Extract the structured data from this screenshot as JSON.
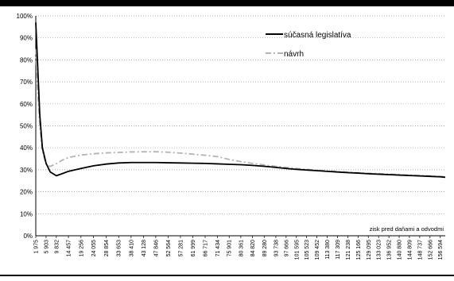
{
  "chart_data": {
    "type": "line",
    "xlabel": "zisk pred daňami a odvodmi",
    "ylabel": "",
    "ylim": [
      0,
      100
    ],
    "yticks": [
      "0%",
      "10%",
      "20%",
      "30%",
      "40%",
      "50%",
      "60%",
      "70%",
      "80%",
      "90%",
      "100%"
    ],
    "grid": true,
    "legend_position": "top-right",
    "categories": [
      "1 975",
      "5 903",
      "9 832",
      "14 457",
      "19 256",
      "24 055",
      "28 854",
      "33 653",
      "38 410",
      "43 128",
      "47 846",
      "52 564",
      "57 281",
      "61 999",
      "66 717",
      "71 434",
      "75 901",
      "80 361",
      "84 820",
      "89 280",
      "93 738",
      "97 666",
      "101 595",
      "105 523",
      "109 452",
      "113 380",
      "117 309",
      "121 238",
      "125 166",
      "129 095",
      "133 023",
      "136 952",
      "140 880",
      "144 809",
      "148 737",
      "152 666",
      "156 594"
    ],
    "x": [
      1975,
      5903,
      9832,
      14457,
      19256,
      24055,
      28854,
      33653,
      38410,
      43128,
      47846,
      52564,
      57281,
      61999,
      66717,
      71434,
      75901,
      80361,
      84820,
      89280,
      93738,
      97666,
      101595,
      105523,
      109452,
      113380,
      117309,
      121238,
      125166,
      129095,
      133023,
      136952,
      140880,
      144809,
      148737,
      152666,
      156594
    ],
    "series": [
      {
        "name": "súčasná legislatíva",
        "color": "#000000",
        "style": "solid",
        "points": [
          [
            1975,
            97
          ],
          [
            2600,
            80
          ],
          [
            3500,
            55
          ],
          [
            4500,
            40
          ],
          [
            5903,
            33
          ],
          [
            7500,
            29
          ],
          [
            9832,
            27.3
          ],
          [
            12000,
            28.2
          ],
          [
            14457,
            29.3
          ],
          [
            19256,
            30.6
          ],
          [
            24055,
            31.8
          ],
          [
            28854,
            32.6
          ],
          [
            33653,
            33.1
          ],
          [
            38410,
            33.3
          ],
          [
            43128,
            33.3
          ],
          [
            47846,
            33.3
          ],
          [
            52564,
            33.2
          ],
          [
            57281,
            33.1
          ],
          [
            61999,
            33
          ],
          [
            66717,
            32.9
          ],
          [
            71434,
            32.7
          ],
          [
            75901,
            32.5
          ],
          [
            80361,
            32.3
          ],
          [
            84820,
            32
          ],
          [
            89280,
            31.6
          ],
          [
            93738,
            31.1
          ],
          [
            97666,
            30.6
          ],
          [
            101595,
            30.2
          ],
          [
            105523,
            29.9
          ],
          [
            109452,
            29.6
          ],
          [
            113380,
            29.3
          ],
          [
            117309,
            29
          ],
          [
            121238,
            28.7
          ],
          [
            125166,
            28.5
          ],
          [
            129095,
            28.2
          ],
          [
            133023,
            28
          ],
          [
            136952,
            27.8
          ],
          [
            140880,
            27.6
          ],
          [
            144809,
            27.4
          ],
          [
            148737,
            27.2
          ],
          [
            152666,
            27
          ],
          [
            156594,
            26.8
          ],
          [
            158500,
            26.6
          ]
        ]
      },
      {
        "name": "návrh",
        "color": "#b3b3b3",
        "style": "dashdot",
        "points": [
          [
            1975,
            85
          ],
          [
            2600,
            68
          ],
          [
            3500,
            50
          ],
          [
            4500,
            38.5
          ],
          [
            5903,
            32.5
          ],
          [
            7500,
            31.5
          ],
          [
            9832,
            32.8
          ],
          [
            12000,
            34.3
          ],
          [
            14457,
            35.6
          ],
          [
            19256,
            36.7
          ],
          [
            24055,
            37.3
          ],
          [
            28854,
            37.7
          ],
          [
            33653,
            37.9
          ],
          [
            38410,
            38.1
          ],
          [
            43128,
            38.2
          ],
          [
            47846,
            38.2
          ],
          [
            52564,
            38
          ],
          [
            57281,
            37.6
          ],
          [
            61999,
            37.1
          ],
          [
            66717,
            36.6
          ],
          [
            71434,
            36
          ],
          [
            75901,
            34.7
          ],
          [
            80361,
            33.7
          ],
          [
            84820,
            32.9
          ],
          [
            89280,
            32.2
          ],
          [
            93738,
            31.6
          ],
          [
            97666,
            31.1
          ],
          [
            101595,
            30.6
          ],
          [
            105523,
            30.2
          ],
          [
            109452,
            29.8
          ],
          [
            113380,
            29.5
          ],
          [
            117309,
            29.2
          ],
          [
            121238,
            28.9
          ],
          [
            125166,
            28.6
          ],
          [
            129095,
            28.4
          ],
          [
            133023,
            28.2
          ],
          [
            136952,
            28
          ],
          [
            140880,
            27.8
          ],
          [
            144809,
            27.6
          ],
          [
            148737,
            27.4
          ],
          [
            152666,
            27.2
          ],
          [
            156594,
            27
          ],
          [
            158500,
            26.8
          ]
        ]
      }
    ]
  }
}
